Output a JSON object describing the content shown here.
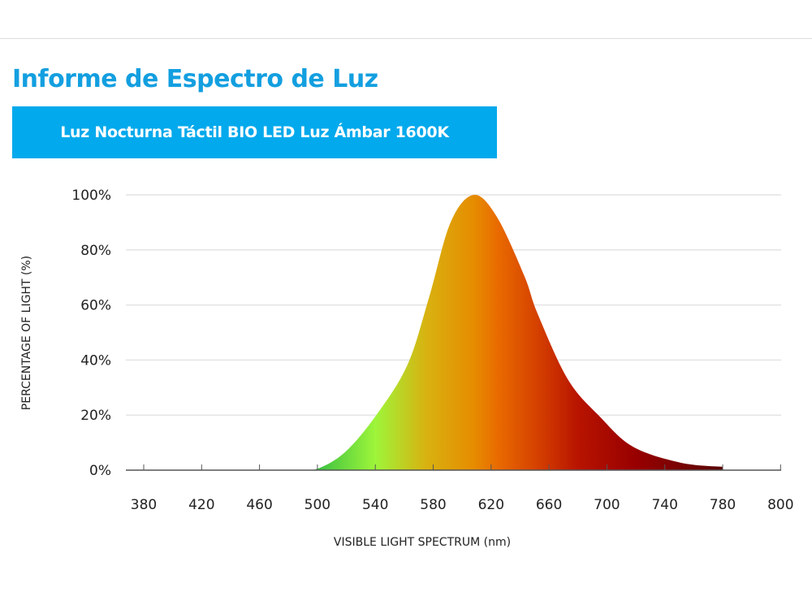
{
  "header": {
    "title": "Informe de Espectro de Luz",
    "subtitle": "Luz Nocturna Táctil BIO LED Luz Ámbar 1600K"
  },
  "colors": {
    "title": "#139fe0",
    "banner": "#02a9ec"
  },
  "chart_data": {
    "type": "area",
    "title": "",
    "xlabel": "VISIBLE LIGHT SPECTRUM (nm)",
    "ylabel": "PERCENTAGE OF LIGHT (%)",
    "x_tick_labels": [
      "380",
      "420",
      "460",
      "500",
      "540",
      "580",
      "620",
      "660",
      "700",
      "740",
      "780",
      "800"
    ],
    "y_tick_labels": [
      "0%",
      "20%",
      "40%",
      "60%",
      "80%",
      "100%"
    ],
    "ylim": [
      0,
      100
    ],
    "grid": true,
    "fill": "spectral gradient (green to dark red)",
    "series": [
      {
        "x": [
          487,
          500,
          519,
          540,
          562,
          577,
          592,
          608,
          624,
          643,
          652,
          673,
          695,
          718,
          751,
          780
        ],
        "y": [
          0,
          0.5,
          6.5,
          19.5,
          38,
          62.5,
          90,
          100,
          92,
          70.5,
          57,
          33,
          19.5,
          8.5,
          2.7,
          1.2
        ]
      }
    ]
  }
}
